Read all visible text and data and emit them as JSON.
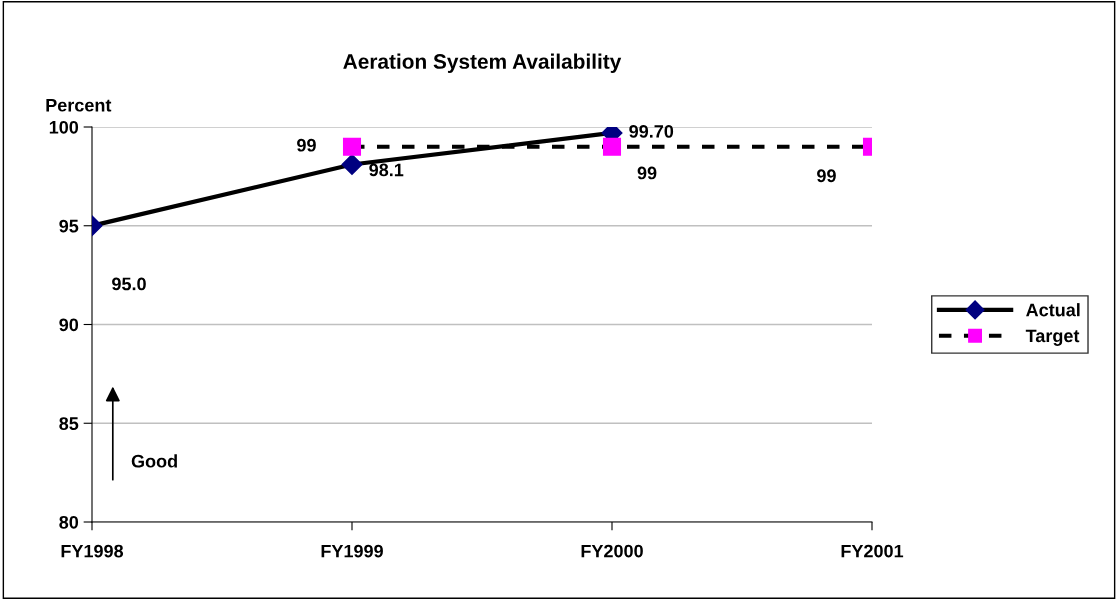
{
  "chart_data": {
    "type": "line",
    "title": "Aeration System Availability",
    "ylabel": "Percent",
    "categories": [
      "FY1998",
      "FY1999",
      "FY2000",
      "FY2001"
    ],
    "series": [
      {
        "name": "Actual",
        "color": "#000080",
        "values": [
          95.0,
          98.1,
          99.7,
          null
        ],
        "value_labels": [
          "95.0",
          "98.1",
          "99.70",
          null
        ],
        "marker": "diamond",
        "line_style": "solid"
      },
      {
        "name": "Target",
        "color": "#ff00ff",
        "values": [
          null,
          99,
          99,
          99
        ],
        "value_labels": [
          null,
          "99",
          "99",
          "99"
        ],
        "marker": "square",
        "line_style": "dashed"
      }
    ],
    "ylim": [
      80,
      100
    ],
    "yticks": [
      80,
      85,
      90,
      95,
      100
    ],
    "grid": "y",
    "legend": "right",
    "annotations": [
      "Good"
    ]
  }
}
